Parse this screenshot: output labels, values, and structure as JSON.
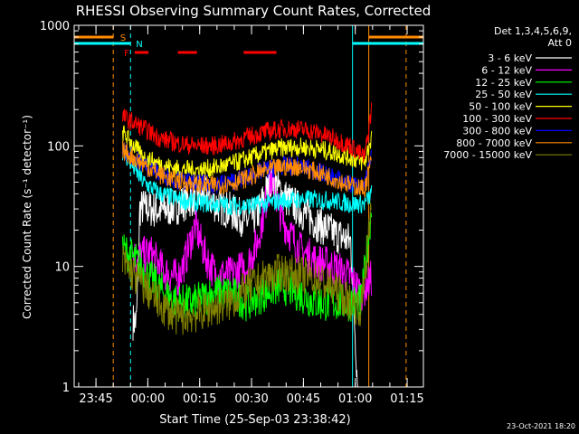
{
  "chart_data": {
    "type": "line",
    "title": "RHESSI Observing Summary Count Rates, Corrected",
    "xlabel": "Start Time (25-Sep-03 23:38:42)",
    "ylabel": "Corrected Count Rate (s⁻¹ detector⁻¹)",
    "y_scale": "log",
    "ylim": [
      1,
      1000
    ],
    "x_unit": "minutes after 23:38:42",
    "xlim": [
      0,
      101
    ],
    "x_ticks": [
      {
        "label": "23:45",
        "value": 6.3
      },
      {
        "label": "00:00",
        "value": 21.3
      },
      {
        "label": "00:15",
        "value": 36.3
      },
      {
        "label": "00:30",
        "value": 51.3
      },
      {
        "label": "00:45",
        "value": 66.3
      },
      {
        "label": "01:00",
        "value": 81.3
      },
      {
        "label": "01:15",
        "value": 96.3
      }
    ],
    "y_ticks": [
      {
        "label": "1",
        "value": 1
      },
      {
        "label": "10",
        "value": 10
      },
      {
        "label": "100",
        "value": 100
      },
      {
        "label": "1000",
        "value": 1000
      }
    ],
    "legend": {
      "position": "top-right",
      "header": [
        "Det 1,3,4,5,6,9,",
        "Att 0"
      ]
    },
    "series": [
      {
        "name": "3 - 6 keV",
        "color": "#ffffff",
        "x": [
          17,
          18,
          19,
          20,
          25,
          30,
          35,
          38,
          40,
          45,
          50,
          53,
          55,
          57,
          60,
          65,
          70,
          75,
          80,
          82
        ],
        "y": [
          3.5,
          3.5,
          30,
          31,
          29,
          32,
          38,
          41,
          34,
          29,
          24,
          27,
          38,
          55,
          40,
          30,
          23,
          19,
          16,
          1
        ]
      },
      {
        "name": "6 - 12 keV",
        "color": "#ff00ff",
        "x": [
          17,
          19,
          22,
          26,
          30,
          32,
          35,
          38,
          41,
          45,
          50,
          53,
          55,
          57,
          60,
          65,
          70,
          75,
          80,
          83,
          86
        ],
        "y": [
          12,
          12,
          13,
          9,
          8,
          11,
          22,
          12,
          8.5,
          8.5,
          10,
          16,
          30,
          55,
          25,
          14,
          11,
          10,
          8,
          6,
          8
        ]
      },
      {
        "name": "12 - 25 keV",
        "color": "#00ff00",
        "x": [
          14,
          18,
          22,
          26,
          30,
          35,
          40,
          45,
          50,
          55,
          60,
          65,
          70,
          75,
          80,
          83,
          86
        ],
        "y": [
          14,
          11,
          8,
          6,
          5,
          5,
          6,
          6,
          5,
          6,
          7,
          6,
          5,
          5,
          5,
          5,
          30
        ]
      },
      {
        "name": "25 - 50 keV",
        "color": "#00ffff",
        "x": [
          14,
          20,
          25,
          30,
          35,
          40,
          45,
          50,
          55,
          60,
          65,
          70,
          75,
          80,
          84,
          86
        ],
        "y": [
          90,
          50,
          40,
          36,
          34,
          33,
          32,
          32,
          33,
          35,
          36,
          36,
          35,
          33,
          33,
          40
        ]
      },
      {
        "name": "50 - 100 keV",
        "color": "#ffff00",
        "x": [
          14,
          20,
          25,
          30,
          35,
          40,
          45,
          50,
          55,
          60,
          65,
          70,
          75,
          80,
          84,
          86
        ],
        "y": [
          130,
          80,
          70,
          64,
          63,
          65,
          70,
          78,
          88,
          96,
          98,
          95,
          88,
          80,
          72,
          120
        ]
      },
      {
        "name": "100 - 300 keV",
        "color": "#ff0000",
        "x": [
          14,
          20,
          25,
          30,
          35,
          40,
          45,
          50,
          55,
          60,
          65,
          70,
          75,
          80,
          84,
          86
        ],
        "y": [
          175,
          140,
          115,
          105,
          100,
          100,
          105,
          118,
          130,
          138,
          138,
          130,
          115,
          100,
          80,
          200
        ]
      },
      {
        "name": "300 - 800 keV",
        "color": "#0000ff",
        "x": [
          14,
          20,
          25,
          30,
          35,
          40,
          45,
          50,
          55,
          60,
          65,
          70,
          75,
          80,
          84,
          86
        ],
        "y": [
          95,
          70,
          58,
          52,
          49,
          48,
          50,
          55,
          63,
          68,
          68,
          62,
          55,
          48,
          46,
          80
        ]
      },
      {
        "name": "800 - 7000 keV",
        "color": "#ff8c00",
        "x": [
          14,
          20,
          25,
          30,
          35,
          40,
          45,
          50,
          55,
          60,
          65,
          70,
          75,
          80,
          84,
          86
        ],
        "y": [
          92,
          70,
          57,
          51,
          48,
          47,
          49,
          54,
          62,
          67,
          67,
          61,
          54,
          47,
          44,
          78
        ]
      },
      {
        "name": "7000 - 15000 keV",
        "color": "#808000",
        "x": [
          14,
          18,
          22,
          26,
          30,
          35,
          40,
          45,
          50,
          55,
          60,
          65,
          70,
          75,
          80,
          83,
          86
        ],
        "y": [
          11,
          8,
          6,
          4.5,
          3.8,
          4,
          4.5,
          5,
          6.5,
          8,
          9,
          8.5,
          8,
          6.5,
          5,
          4.5,
          30
        ]
      }
    ],
    "flag_bars": [
      {
        "label": "S",
        "color": "#ff8c00",
        "segments": [
          [
            0,
            11.3
          ],
          [
            85.2,
            101
          ]
        ]
      },
      {
        "label": "N",
        "color": "#00ffff",
        "segments": [
          [
            0,
            16.3
          ],
          [
            80.5,
            101
          ]
        ]
      },
      {
        "label": "F",
        "color": "#ff0000",
        "segments": [
          [
            17.5,
            21.5
          ],
          [
            30.0,
            35.5
          ],
          [
            49.0,
            58.5
          ]
        ]
      }
    ],
    "vertical_lines": [
      {
        "x": 11.3,
        "color": "#ff8c00",
        "dash": true
      },
      {
        "x": 16.3,
        "color": "#00ffff",
        "dash": true
      },
      {
        "x": 80.5,
        "color": "#00ffff",
        "dash": false
      },
      {
        "x": 85.2,
        "color": "#ff8c00",
        "dash": false
      },
      {
        "x": 96.0,
        "color": "#ff8c00",
        "dash": true
      }
    ],
    "footer_stamp": "23-Oct-2021 18:20"
  }
}
